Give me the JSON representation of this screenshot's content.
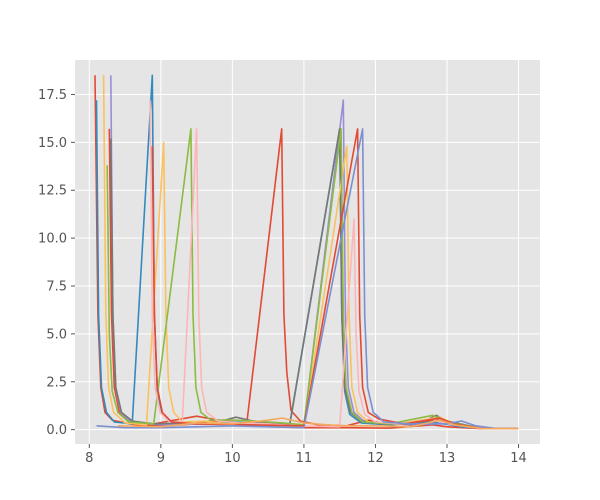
{
  "chart_data": {
    "type": "line",
    "title": "",
    "xlabel": "",
    "ylabel": "",
    "style": "ggplot",
    "grid": true,
    "legend": "none",
    "xlim": [
      7.8,
      14.3
    ],
    "ylim": [
      -0.75,
      19.3
    ],
    "xticks": [
      8,
      9,
      10,
      11,
      12,
      13,
      14
    ],
    "yticks": [
      0.0,
      2.5,
      5.0,
      7.5,
      10.0,
      12.5,
      15.0,
      17.5
    ],
    "xtick_labels": [
      "8",
      "9",
      "10",
      "11",
      "12",
      "13",
      "14"
    ],
    "ytick_labels": [
      "0.0",
      "2.5",
      "5.0",
      "7.5",
      "10.0",
      "12.5",
      "15.0",
      "17.5"
    ],
    "colors": {
      "background": "#E5E5E5",
      "grid": "#FFFFFF",
      "tick_text": "#555555"
    },
    "series": [
      {
        "color": "#E24A33",
        "values": [
          [
            8.08,
            18.5
          ],
          [
            8.12,
            6.0
          ],
          [
            8.16,
            2.2
          ],
          [
            8.22,
            0.9
          ],
          [
            8.32,
            0.5
          ],
          [
            8.6,
            0.28
          ],
          [
            9.0,
            0.18
          ],
          [
            9.4,
            0.28
          ],
          [
            9.7,
            0.45
          ],
          [
            9.95,
            0.3
          ],
          [
            10.3,
            0.2
          ],
          [
            10.6,
            0.15
          ],
          [
            11.0,
            0.1
          ],
          [
            11.6,
            0.1
          ],
          [
            12.2,
            0.08
          ],
          [
            12.8,
            0.25
          ],
          [
            13.0,
            0.15
          ],
          [
            13.5,
            0.05
          ],
          [
            14.0,
            0.05
          ]
        ]
      },
      {
        "color": "#E24A33",
        "values": [
          [
            8.28,
            15.7
          ],
          [
            8.31,
            6.0
          ],
          [
            8.35,
            2.2
          ],
          [
            8.42,
            0.9
          ],
          [
            8.55,
            0.45
          ],
          [
            8.9,
            0.3
          ],
          [
            9.5,
            0.7
          ],
          [
            9.8,
            0.5
          ],
          [
            10.2,
            0.3
          ],
          [
            10.69,
            15.7
          ],
          [
            10.72,
            6.0
          ],
          [
            10.76,
            3.0
          ],
          [
            10.82,
            1.0
          ],
          [
            10.95,
            0.45
          ],
          [
            11.2,
            0.25
          ],
          [
            11.6,
            0.2
          ],
          [
            11.9,
            0.5
          ],
          [
            12.1,
            0.35
          ],
          [
            12.5,
            0.25
          ],
          [
            12.85,
            0.55
          ],
          [
            13.0,
            0.35
          ],
          [
            13.5,
            0.05
          ],
          [
            14.0,
            0.05
          ]
        ]
      },
      {
        "color": "#348ABD",
        "values": [
          [
            8.1,
            17.2
          ],
          [
            8.13,
            6.0
          ],
          [
            8.17,
            2.2
          ],
          [
            8.24,
            0.9
          ],
          [
            8.35,
            0.4
          ],
          [
            8.6,
            0.3
          ],
          [
            8.88,
            18.5
          ],
          [
            8.91,
            6.0
          ],
          [
            8.95,
            2.0
          ],
          [
            9.02,
            0.8
          ],
          [
            9.15,
            0.4
          ],
          [
            9.5,
            0.3
          ],
          [
            10.0,
            0.4
          ],
          [
            10.3,
            0.35
          ],
          [
            10.8,
            0.2
          ],
          [
            11.5,
            15.7
          ],
          [
            11.53,
            6.0
          ],
          [
            11.57,
            2.0
          ],
          [
            11.64,
            0.8
          ],
          [
            11.8,
            0.35
          ],
          [
            12.2,
            0.25
          ],
          [
            12.8,
            0.4
          ],
          [
            13.2,
            0.15
          ],
          [
            13.6,
            0.05
          ],
          [
            14.0,
            0.05
          ]
        ]
      },
      {
        "color": "#988ED5",
        "values": [
          [
            8.3,
            18.5
          ],
          [
            8.33,
            6.0
          ],
          [
            8.37,
            2.2
          ],
          [
            8.44,
            0.9
          ],
          [
            8.58,
            0.4
          ],
          [
            9.0,
            0.25
          ],
          [
            9.6,
            0.3
          ],
          [
            10.2,
            0.25
          ],
          [
            11.0,
            0.2
          ],
          [
            11.55,
            17.2
          ],
          [
            11.58,
            6.0
          ],
          [
            11.62,
            2.2
          ],
          [
            11.7,
            0.9
          ],
          [
            11.85,
            0.4
          ],
          [
            12.2,
            0.3
          ],
          [
            12.6,
            0.25
          ],
          [
            13.0,
            0.35
          ],
          [
            13.2,
            0.25
          ],
          [
            13.6,
            0.05
          ],
          [
            14.0,
            0.05
          ]
        ]
      },
      {
        "color": "#777777",
        "values": [
          [
            8.3,
            15.2
          ],
          [
            8.33,
            6.0
          ],
          [
            8.37,
            2.2
          ],
          [
            8.45,
            0.9
          ],
          [
            8.6,
            0.45
          ],
          [
            8.9,
            0.3
          ],
          [
            9.3,
            0.35
          ],
          [
            9.7,
            0.3
          ],
          [
            10.05,
            0.65
          ],
          [
            10.4,
            0.35
          ],
          [
            10.8,
            0.25
          ],
          [
            11.5,
            15.7
          ],
          [
            11.53,
            6.0
          ],
          [
            11.57,
            2.2
          ],
          [
            11.65,
            0.9
          ],
          [
            11.8,
            0.45
          ],
          [
            12.1,
            0.3
          ],
          [
            12.6,
            0.3
          ],
          [
            12.85,
            0.75
          ],
          [
            13.0,
            0.45
          ],
          [
            13.5,
            0.05
          ],
          [
            14.0,
            0.05
          ]
        ]
      },
      {
        "color": "#FBC15E",
        "values": [
          [
            8.2,
            18.5
          ],
          [
            8.23,
            6.0
          ],
          [
            8.27,
            2.2
          ],
          [
            8.34,
            0.9
          ],
          [
            8.5,
            0.35
          ],
          [
            8.8,
            0.25
          ],
          [
            9.04,
            15.0
          ],
          [
            9.07,
            6.0
          ],
          [
            9.11,
            2.2
          ],
          [
            9.18,
            0.9
          ],
          [
            9.3,
            0.4
          ],
          [
            9.6,
            0.45
          ],
          [
            9.95,
            0.3
          ],
          [
            10.4,
            0.25
          ],
          [
            11.0,
            0.15
          ],
          [
            11.6,
            14.8
          ],
          [
            11.63,
            6.0
          ],
          [
            11.67,
            2.2
          ],
          [
            11.75,
            0.9
          ],
          [
            11.9,
            0.4
          ],
          [
            12.3,
            0.3
          ],
          [
            12.9,
            0.65
          ],
          [
            13.1,
            0.3
          ],
          [
            13.5,
            0.05
          ],
          [
            14.0,
            0.05
          ]
        ]
      },
      {
        "color": "#8EBA42",
        "values": [
          [
            8.25,
            13.8
          ],
          [
            8.28,
            5.0
          ],
          [
            8.32,
            2.0
          ],
          [
            8.4,
            0.9
          ],
          [
            8.55,
            0.4
          ],
          [
            8.9,
            0.3
          ],
          [
            9.42,
            15.7
          ],
          [
            9.45,
            6.0
          ],
          [
            9.49,
            2.2
          ],
          [
            9.56,
            0.9
          ],
          [
            9.7,
            0.5
          ],
          [
            10.0,
            0.5
          ],
          [
            10.3,
            0.45
          ],
          [
            10.7,
            0.35
          ],
          [
            11.0,
            0.25
          ],
          [
            11.52,
            15.7
          ],
          [
            11.55,
            6.0
          ],
          [
            11.59,
            2.2
          ],
          [
            11.67,
            0.9
          ],
          [
            11.82,
            0.4
          ],
          [
            12.2,
            0.3
          ],
          [
            12.8,
            0.75
          ],
          [
            13.0,
            0.4
          ],
          [
            13.5,
            0.05
          ],
          [
            14.0,
            0.05
          ]
        ]
      },
      {
        "color": "#FFB5B8",
        "values": [
          [
            8.85,
            17.2
          ],
          [
            8.88,
            6.0
          ],
          [
            8.92,
            2.2
          ],
          [
            8.99,
            0.9
          ],
          [
            9.12,
            0.4
          ],
          [
            9.3,
            0.4
          ],
          [
            9.5,
            15.7
          ],
          [
            9.53,
            6.0
          ],
          [
            9.57,
            2.2
          ],
          [
            9.64,
            0.9
          ],
          [
            9.8,
            0.45
          ],
          [
            10.1,
            0.35
          ],
          [
            10.5,
            0.3
          ],
          [
            10.9,
            0.2
          ],
          [
            11.5,
            0.15
          ],
          [
            11.7,
            11.0
          ],
          [
            11.73,
            5.0
          ],
          [
            11.77,
            2.0
          ],
          [
            11.85,
            0.8
          ],
          [
            12.0,
            0.4
          ],
          [
            12.4,
            0.3
          ],
          [
            12.8,
            0.55
          ],
          [
            13.0,
            0.3
          ],
          [
            13.5,
            0.05
          ],
          [
            14.0,
            0.05
          ]
        ]
      },
      {
        "color": "#E24A33",
        "values": [
          [
            8.88,
            14.8
          ],
          [
            8.91,
            6.0
          ],
          [
            8.95,
            2.2
          ],
          [
            9.02,
            0.9
          ],
          [
            9.15,
            0.4
          ],
          [
            9.5,
            0.3
          ],
          [
            10.2,
            0.25
          ],
          [
            11.0,
            0.2
          ],
          [
            11.75,
            15.7
          ],
          [
            11.78,
            6.0
          ],
          [
            11.82,
            2.2
          ],
          [
            11.9,
            0.9
          ],
          [
            12.05,
            0.55
          ],
          [
            12.4,
            0.3
          ],
          [
            12.9,
            0.6
          ],
          [
            13.1,
            0.3
          ],
          [
            13.5,
            0.05
          ],
          [
            14.0,
            0.05
          ]
        ]
      },
      {
        "color": "#7B8FD1",
        "values": [
          [
            8.1,
            0.2
          ],
          [
            8.5,
            0.1
          ],
          [
            9.0,
            0.1
          ],
          [
            9.5,
            0.15
          ],
          [
            10.0,
            0.2
          ],
          [
            10.5,
            0.15
          ],
          [
            11.0,
            0.1
          ],
          [
            11.82,
            15.7
          ],
          [
            11.85,
            6.0
          ],
          [
            11.89,
            2.2
          ],
          [
            11.97,
            0.9
          ],
          [
            12.12,
            0.4
          ],
          [
            12.5,
            0.3
          ],
          [
            13.0,
            0.3
          ],
          [
            13.2,
            0.45
          ],
          [
            13.4,
            0.2
          ],
          [
            13.7,
            0.05
          ],
          [
            14.0,
            0.05
          ]
        ]
      },
      {
        "color": "#F5A85D",
        "values": [
          [
            8.4,
            0.2
          ],
          [
            9.0,
            0.15
          ],
          [
            9.5,
            0.35
          ],
          [
            10.0,
            0.3
          ],
          [
            10.4,
            0.45
          ],
          [
            10.7,
            0.6
          ],
          [
            11.0,
            0.35
          ],
          [
            11.5,
            0.2
          ],
          [
            12.0,
            0.2
          ],
          [
            12.5,
            0.15
          ],
          [
            12.9,
            0.5
          ],
          [
            13.1,
            0.25
          ],
          [
            13.5,
            0.05
          ],
          [
            14.0,
            0.05
          ]
        ]
      }
    ]
  }
}
